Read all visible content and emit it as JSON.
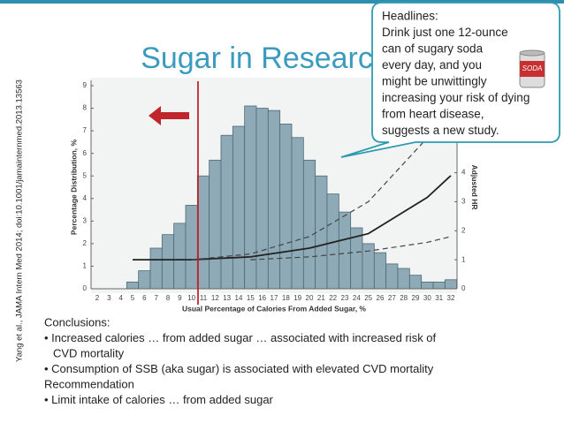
{
  "slide_title": "Sugar in Research",
  "citation": "Yang et al., JAMA Intern Med 2014; doi:10.1001/jamainternmed.2013.13563",
  "callout": [
    "Headlines:",
    "Drink just one 12-ounce",
    "can of sugary soda",
    "every day, and you",
    "might be unwittingly",
    "increasing your risk of dying",
    "from heart disease,",
    "suggests a new study."
  ],
  "soda_label": "SODA",
  "conclusions": [
    "Conclusions:",
    "• Increased calories … from added sugar … associated with increased risk of",
    "CVD mortality",
    "• Consumption of SSB (aka sugar) is associated with elevated CVD mortality",
    "Recommendation",
    "• Limit intake of calories … from added sugar"
  ],
  "chart_data": {
    "type": "bar",
    "xlabel": "Usual Percentage of Calories From Added Sugar, %",
    "ylabel": "Percentage Distribution, %",
    "y2label": "Adjusted HR",
    "categories": [
      "2",
      "3",
      "4",
      "5",
      "6",
      "7",
      "8",
      "9",
      "10",
      "11",
      "12",
      "13",
      "14",
      "15",
      "16",
      "17",
      "18",
      "19",
      "20",
      "21",
      "22",
      "23",
      "24",
      "25",
      "26",
      "27",
      "28",
      "29",
      "30",
      "31",
      "32"
    ],
    "values": [
      0,
      0,
      0,
      0.3,
      0.8,
      1.8,
      2.4,
      2.9,
      3.7,
      5.0,
      5.7,
      6.8,
      7.2,
      8.1,
      8.0,
      7.9,
      7.3,
      6.7,
      5.7,
      5.0,
      4.2,
      3.4,
      2.7,
      2.0,
      1.6,
      1.1,
      0.9,
      0.6,
      0.3,
      0.3,
      0.4
    ],
    "color": "#8eaab6",
    "ylim": [
      0,
      9
    ],
    "yticks": [
      0,
      1,
      2,
      3,
      4,
      5,
      6,
      7,
      8,
      9
    ],
    "y2lim": [
      0,
      7
    ],
    "y2ticks": [
      0,
      1,
      2,
      3,
      4
    ],
    "series": [
      {
        "color": "#222222",
        "dashed": false,
        "axis": "y2",
        "x": [
          5,
          10,
          15,
          20,
          25,
          30,
          32
        ],
        "values": [
          1.0,
          1.0,
          1.1,
          1.4,
          1.9,
          3.15,
          3.9
        ]
      },
      {
        "color": "#444444",
        "dashed": true,
        "axis": "y2",
        "x": [
          10,
          15,
          20,
          25,
          30,
          32
        ],
        "values": [
          1.0,
          1.2,
          1.8,
          3.0,
          5.2,
          6.5
        ]
      },
      {
        "color": "#444444",
        "dashed": true,
        "axis": "y2",
        "x": [
          15,
          20,
          25,
          30,
          32
        ],
        "values": [
          1.0,
          1.1,
          1.3,
          1.6,
          1.8
        ]
      }
    ]
  }
}
